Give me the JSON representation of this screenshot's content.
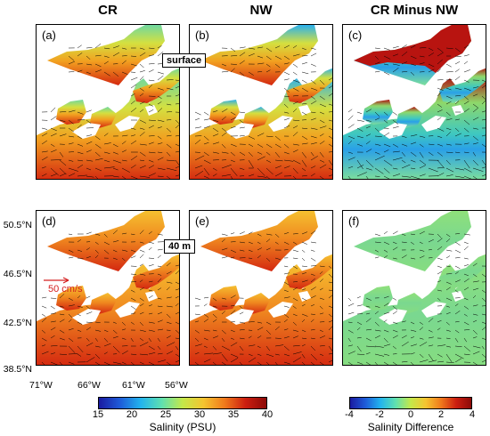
{
  "columns": [
    {
      "title": "CR"
    },
    {
      "title": "NW"
    },
    {
      "title": "CR Minus NW"
    }
  ],
  "panels": [
    {
      "label": "(a)",
      "field": "salinity",
      "level": "surface"
    },
    {
      "label": "(b)",
      "field": "salinity",
      "level": "surface"
    },
    {
      "label": "(c)",
      "field": "difference",
      "level": "surface"
    },
    {
      "label": "(d)",
      "field": "salinity",
      "level": "deep"
    },
    {
      "label": "(e)",
      "field": "salinity",
      "level": "deep"
    },
    {
      "label": "(f)",
      "field": "difference",
      "level": "deep"
    }
  ],
  "depth_tags": {
    "surface": "surface",
    "deep": "40 m"
  },
  "latitude_labels": [
    "50.5°N",
    "46.5°N",
    "42.5°N",
    "38.5°N"
  ],
  "longitude_labels": [
    "71°W",
    "66°W",
    "61°W",
    "56°W"
  ],
  "velocity_scale": {
    "label": "50 cm/s",
    "color": "#d42020"
  },
  "colorbars": {
    "salinity": {
      "title": "Salinity (PSU)",
      "ticks": [
        "15",
        "20",
        "25",
        "30",
        "35",
        "40"
      ],
      "range": [
        15,
        40
      ],
      "colors": [
        "#1a1aa0",
        "#1e5bd8",
        "#22b4ee",
        "#5fe0b0",
        "#c4e84a",
        "#f5c430",
        "#f07a1c",
        "#cc1e10",
        "#8c0a08"
      ]
    },
    "difference": {
      "title": "Salinity Difference",
      "ticks": [
        "-4",
        "-2",
        "0",
        "2",
        "4"
      ],
      "range": [
        -4,
        4
      ],
      "colors": [
        "#1a1aa0",
        "#1e5bd8",
        "#22b4ee",
        "#5fe0b0",
        "#c4e84a",
        "#f5c430",
        "#f07a1c",
        "#cc1e10",
        "#8c0a08"
      ]
    }
  }
}
